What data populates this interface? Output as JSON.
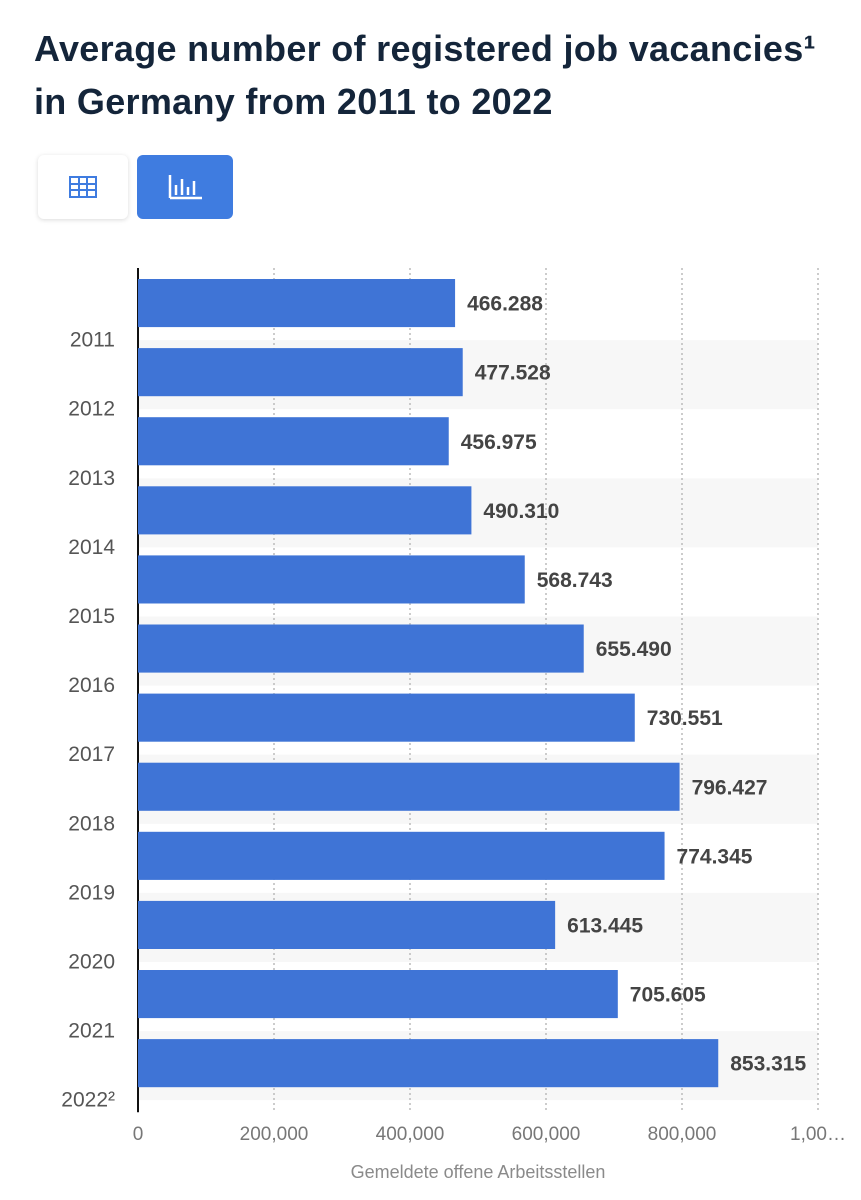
{
  "chart_data": {
    "type": "hbar",
    "title": "Average number of registered job vacancies¹ in Germany from 2011 to 2022",
    "x_label": "Gemeldete offene Arbeitsstellen",
    "categories": [
      "2011",
      "2012",
      "2013",
      "2014",
      "2015",
      "2016",
      "2017",
      "2018",
      "2019",
      "2020",
      "2021",
      "2022²"
    ],
    "values": [
      466288,
      477528,
      456975,
      490310,
      568743,
      655490,
      730551,
      796427,
      774345,
      613445,
      705605,
      853315
    ],
    "value_labels": [
      "466.288",
      "477.528",
      "456.975",
      "490.310",
      "568.743",
      "655.490",
      "730.551",
      "796.427",
      "774.345",
      "613.445",
      "705.605",
      "853.315"
    ],
    "color": "#3f74d6",
    "xlim": [
      0,
      1000000
    ],
    "xticks": [
      0,
      {
        "value": 200000,
        "label": "200,000"
      },
      {
        "value": 400000,
        "label": "400,000"
      },
      {
        "value": 600000,
        "label": "600,000"
      },
      {
        "value": 800000,
        "label": "800,000"
      },
      {
        "value": 1000000,
        "label": "1,00…"
      }
    ],
    "grid": true
  }
}
